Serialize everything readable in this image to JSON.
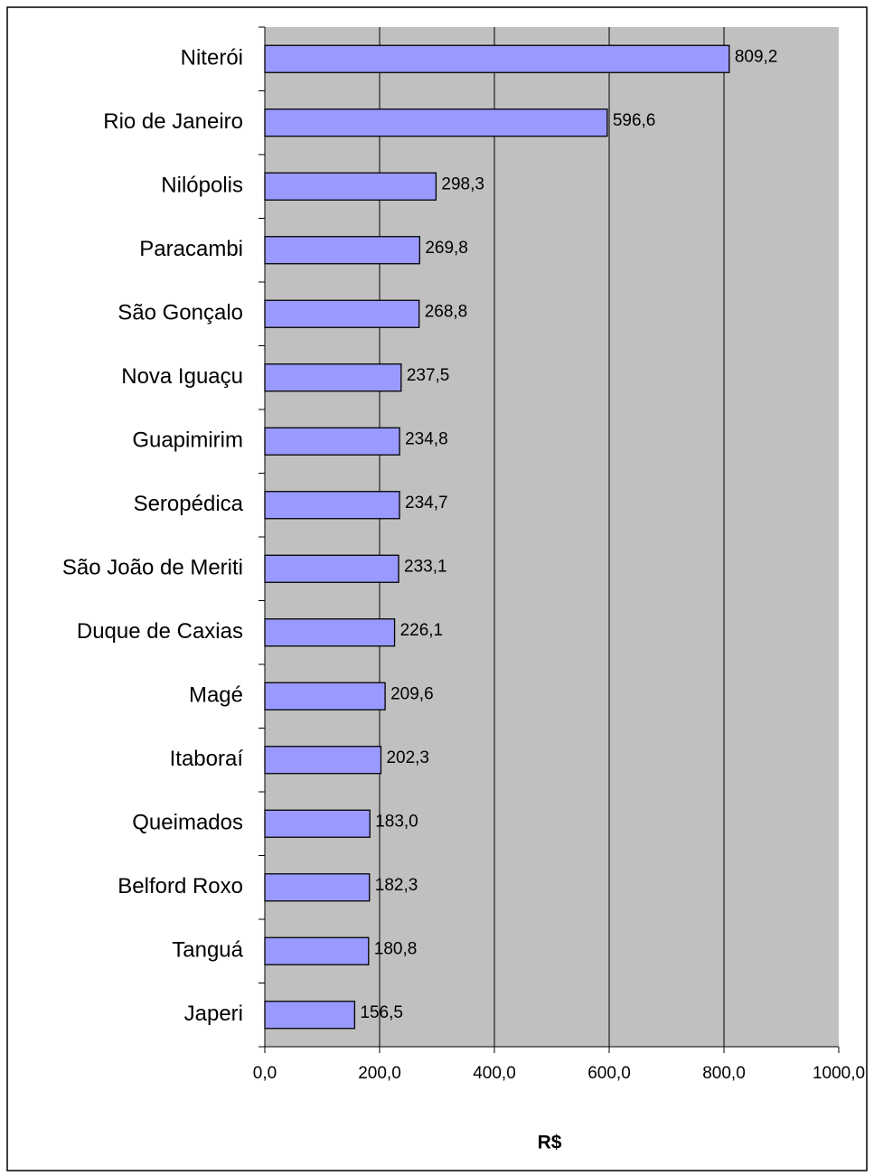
{
  "chart_data": {
    "type": "bar",
    "orientation": "horizontal",
    "x_label": "R$",
    "categories": [
      "Niterói",
      "Rio de Janeiro",
      "Nilópolis",
      "Paracambi",
      "São Gonçalo",
      "Nova Iguaçu",
      "Guapimirim",
      "Seropédica",
      "São João de Meriti",
      "Duque de Caxias",
      "Magé",
      "Itaboraí",
      "Queimados",
      "Belford Roxo",
      "Tanguá",
      "Japeri"
    ],
    "values": [
      809.2,
      596.6,
      298.3,
      269.8,
      268.8,
      237.5,
      234.8,
      234.7,
      233.1,
      226.1,
      209.6,
      202.3,
      183.0,
      182.3,
      180.8,
      156.5
    ],
    "value_labels": [
      "809,2",
      "596,6",
      "298,3",
      "269,8",
      "268,8",
      "237,5",
      "234,8",
      "234,7",
      "233,1",
      "226,1",
      "209,6",
      "202,3",
      "183,0",
      "182,3",
      "180,8",
      "156,5"
    ],
    "color": "#9999ff",
    "xlim": [
      0,
      1000
    ],
    "xticks": [
      {
        "value": 0,
        "label": "0,0"
      },
      {
        "value": 200,
        "label": "200,0"
      },
      {
        "value": 400,
        "label": "400,0"
      },
      {
        "value": 600,
        "label": "600,0"
      },
      {
        "value": 800,
        "label": "800,0"
      },
      {
        "value": 1000,
        "label": "1000,0"
      }
    ],
    "grid": true
  }
}
